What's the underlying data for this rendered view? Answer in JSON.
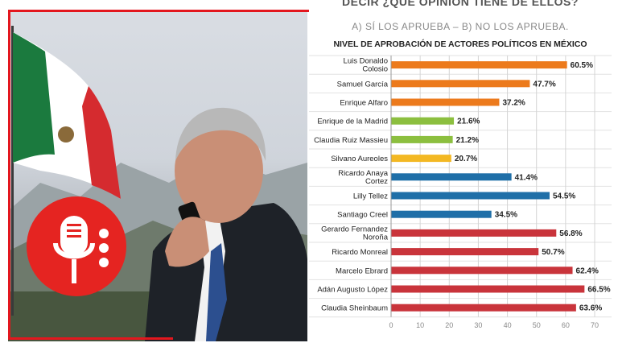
{
  "header": {
    "question_fragment": "DECIR ¿QUÉ OPINIÓN TIENE DE ELLOS?",
    "options": "A) SÍ LOS APRUEBA – B) NO LOS APRUEBA."
  },
  "chart_data": {
    "type": "bar",
    "orientation": "horizontal",
    "title": "NIVEL DE APROBACIÓN DE ACTORES POLÍTICOS EN MÉXICO",
    "categories": [
      "Luis Donaldo Colosio",
      "Samuel García",
      "Enrique Alfaro",
      "Enrique de la Madrid",
      "Claudia Ruiz Massieu",
      "Silvano Aureoles",
      "Ricardo Anaya Cortez",
      "Lilly Tellez",
      "Santiago Creel",
      "Gerardo Fernandez Noroña",
      "Ricardo Monreal",
      "Marcelo Ebrard",
      "Adán Augusto López",
      "Claudia Sheinbaum"
    ],
    "category_lines": [
      [
        "Luis Donaldo",
        "Colosio"
      ],
      [
        "Samuel García"
      ],
      [
        "Enrique Alfaro"
      ],
      [
        "Enrique de la Madrid"
      ],
      [
        "Claudia Ruiz Massieu"
      ],
      [
        "Silvano Aureoles"
      ],
      [
        "Ricardo Anaya",
        "Cortez"
      ],
      [
        "Lilly Tellez"
      ],
      [
        "Santiago Creel"
      ],
      [
        "Gerardo Fernandez",
        "Noroña"
      ],
      [
        "Ricardo Monreal"
      ],
      [
        "Marcelo Ebrard"
      ],
      [
        "Adán Augusto López"
      ],
      [
        "Claudia Sheinbaum"
      ]
    ],
    "values": [
      60.5,
      47.7,
      37.2,
      21.6,
      21.2,
      20.7,
      41.4,
      54.5,
      34.5,
      56.8,
      50.7,
      62.4,
      66.5,
      63.6
    ],
    "value_labels": [
      "60.5%",
      "47.7%",
      "37.2%",
      "21.6%",
      "21.2%",
      "20.7%",
      "41.4%",
      "54.5%",
      "34.5%",
      "56.8%",
      "50.7%",
      "62.4%",
      "66.5%",
      "63.6%"
    ],
    "colors": [
      "#ec7a1c",
      "#ec7a1c",
      "#ec7a1c",
      "#8cbf3f",
      "#8cbf3f",
      "#f3b823",
      "#1f6fa8",
      "#1f6fa8",
      "#1f6fa8",
      "#c9343b",
      "#c9343b",
      "#c9343b",
      "#c9343b",
      "#c9343b"
    ],
    "xlim": [
      0,
      70
    ],
    "xticks": [
      0,
      10,
      20,
      30,
      40,
      50,
      60,
      70
    ],
    "grid": true,
    "xlabel": "",
    "ylabel": ""
  },
  "badge": {
    "icon": "microphone-icon",
    "color": "#e52421"
  },
  "colors": {
    "frame_red": "#e3171e"
  }
}
